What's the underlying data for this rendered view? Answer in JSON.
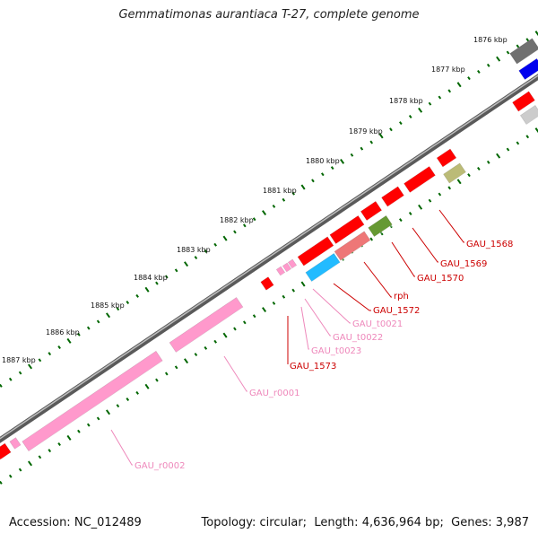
{
  "map": {
    "title": "Gemmatimonas aurantiaca T-27, complete genome",
    "accession_label": "Accession:",
    "accession": "NC_012489",
    "topology_label": "Topology:",
    "topology": "circular",
    "length_label": "Length:",
    "length": "4,636,964 bp",
    "genes_label": "Genes:",
    "genes": "3,987"
  },
  "colors": {
    "cds": "#ff0000",
    "rrna": "#ff99cc",
    "trna": "#ff99cc",
    "backbone": "#808080",
    "tick": "#006600",
    "label_cds": "#cc0000",
    "label_rna": "#ee88bb",
    "unknown_gray": "#707070",
    "blue": "#0000ee",
    "cyan": "#22bbff",
    "olive": "#669933",
    "khaki": "#bbbb77",
    "light_gray": "#cccccc"
  },
  "ticks": [
    "1876 kbp",
    "1877 kbp",
    "1878 kbp",
    "1879 kbp",
    "1880 kbp",
    "1881 kbp",
    "1882 kbp",
    "1883 kbp",
    "1884 kbp",
    "1885 kbp",
    "1886 kbp",
    "1887 kbp"
  ],
  "feature_labels": [
    {
      "text": "GAU_1568",
      "kind": "cds"
    },
    {
      "text": "GAU_1569",
      "kind": "cds"
    },
    {
      "text": "GAU_1570",
      "kind": "cds"
    },
    {
      "text": "rph",
      "kind": "cds"
    },
    {
      "text": "GAU_1572",
      "kind": "cds"
    },
    {
      "text": "GAU_t0021",
      "kind": "rna"
    },
    {
      "text": "GAU_t0022",
      "kind": "rna"
    },
    {
      "text": "GAU_t0023",
      "kind": "rna"
    },
    {
      "text": "GAU_1573",
      "kind": "cds"
    },
    {
      "text": "GAU_r0001",
      "kind": "rna"
    },
    {
      "text": "GAU_r0002",
      "kind": "rna"
    }
  ]
}
